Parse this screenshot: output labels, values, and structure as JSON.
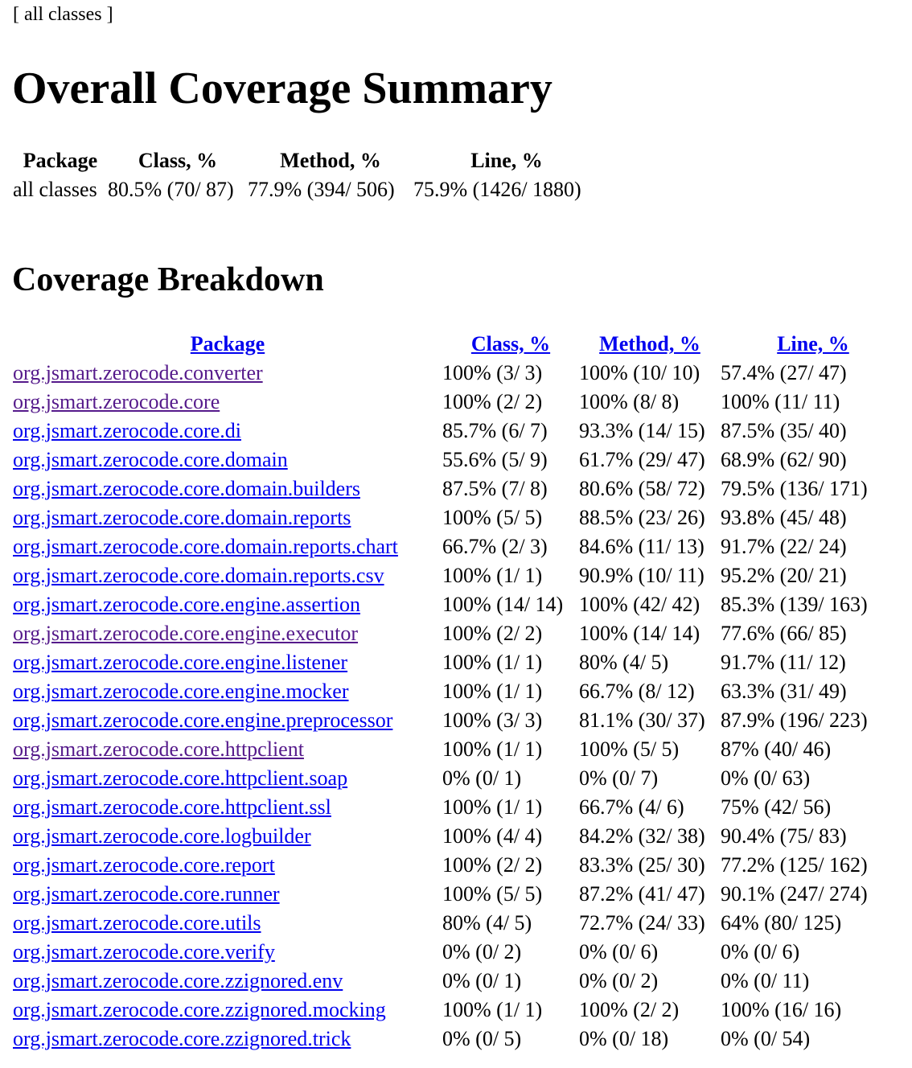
{
  "nav": {
    "label": "[ all classes ]"
  },
  "title": "Overall Coverage Summary",
  "summary": {
    "headers": [
      "Package",
      "Class, %",
      "Method, %",
      "Line, %"
    ],
    "row": [
      "all classes",
      "80.5% (70/ 87)",
      "77.9% (394/ 506)",
      "75.9% (1426/ 1880)"
    ]
  },
  "breakdown_title": "Coverage Breakdown",
  "breakdown": {
    "headers": [
      "Package",
      "Class, %",
      "Method, %",
      "Line, %"
    ],
    "rows": [
      {
        "name": "org.jsmart.zerocode.converter",
        "visited": true,
        "cls": "100% (3/ 3)",
        "method": "100% (10/ 10)",
        "line": "57.4% (27/ 47)"
      },
      {
        "name": "org.jsmart.zerocode.core",
        "visited": true,
        "cls": "100% (2/ 2)",
        "method": "100% (8/ 8)",
        "line": "100% (11/ 11)"
      },
      {
        "name": "org.jsmart.zerocode.core.di",
        "visited": false,
        "cls": "85.7% (6/ 7)",
        "method": "93.3% (14/ 15)",
        "line": "87.5% (35/ 40)"
      },
      {
        "name": "org.jsmart.zerocode.core.domain",
        "visited": false,
        "cls": "55.6% (5/ 9)",
        "method": "61.7% (29/ 47)",
        "line": "68.9% (62/ 90)"
      },
      {
        "name": "org.jsmart.zerocode.core.domain.builders",
        "visited": false,
        "cls": "87.5% (7/ 8)",
        "method": "80.6% (58/ 72)",
        "line": "79.5% (136/ 171)"
      },
      {
        "name": "org.jsmart.zerocode.core.domain.reports",
        "visited": false,
        "cls": "100% (5/ 5)",
        "method": "88.5% (23/ 26)",
        "line": "93.8% (45/ 48)"
      },
      {
        "name": "org.jsmart.zerocode.core.domain.reports.chart",
        "visited": false,
        "cls": "66.7% (2/ 3)",
        "method": "84.6% (11/ 13)",
        "line": "91.7% (22/ 24)"
      },
      {
        "name": "org.jsmart.zerocode.core.domain.reports.csv",
        "visited": false,
        "cls": "100% (1/ 1)",
        "method": "90.9% (10/ 11)",
        "line": "95.2% (20/ 21)"
      },
      {
        "name": "org.jsmart.zerocode.core.engine.assertion",
        "visited": false,
        "cls": "100% (14/ 14)",
        "method": "100% (42/ 42)",
        "line": "85.3% (139/ 163)"
      },
      {
        "name": "org.jsmart.zerocode.core.engine.executor",
        "visited": true,
        "cls": "100% (2/ 2)",
        "method": "100% (14/ 14)",
        "line": "77.6% (66/ 85)"
      },
      {
        "name": "org.jsmart.zerocode.core.engine.listener",
        "visited": false,
        "cls": "100% (1/ 1)",
        "method": "80% (4/ 5)",
        "line": "91.7% (11/ 12)"
      },
      {
        "name": "org.jsmart.zerocode.core.engine.mocker",
        "visited": false,
        "cls": "100% (1/ 1)",
        "method": "66.7% (8/ 12)",
        "line": "63.3% (31/ 49)"
      },
      {
        "name": "org.jsmart.zerocode.core.engine.preprocessor",
        "visited": false,
        "cls": "100% (3/ 3)",
        "method": "81.1% (30/ 37)",
        "line": "87.9% (196/ 223)"
      },
      {
        "name": "org.jsmart.zerocode.core.httpclient",
        "visited": true,
        "cls": "100% (1/ 1)",
        "method": "100% (5/ 5)",
        "line": "87% (40/ 46)"
      },
      {
        "name": "org.jsmart.zerocode.core.httpclient.soap",
        "visited": false,
        "cls": "0% (0/ 1)",
        "method": "0% (0/ 7)",
        "line": "0% (0/ 63)"
      },
      {
        "name": "org.jsmart.zerocode.core.httpclient.ssl",
        "visited": false,
        "cls": "100% (1/ 1)",
        "method": "66.7% (4/ 6)",
        "line": "75% (42/ 56)"
      },
      {
        "name": "org.jsmart.zerocode.core.logbuilder",
        "visited": false,
        "cls": "100% (4/ 4)",
        "method": "84.2% (32/ 38)",
        "line": "90.4% (75/ 83)"
      },
      {
        "name": "org.jsmart.zerocode.core.report",
        "visited": false,
        "cls": "100% (2/ 2)",
        "method": "83.3% (25/ 30)",
        "line": "77.2% (125/ 162)"
      },
      {
        "name": "org.jsmart.zerocode.core.runner",
        "visited": false,
        "cls": "100% (5/ 5)",
        "method": "87.2% (41/ 47)",
        "line": "90.1% (247/ 274)"
      },
      {
        "name": "org.jsmart.zerocode.core.utils",
        "visited": false,
        "cls": "80% (4/ 5)",
        "method": "72.7% (24/ 33)",
        "line": "64% (80/ 125)"
      },
      {
        "name": "org.jsmart.zerocode.core.verify",
        "visited": false,
        "cls": "0% (0/ 2)",
        "method": "0% (0/ 6)",
        "line": "0% (0/ 6)"
      },
      {
        "name": "org.jsmart.zerocode.core.zzignored.env",
        "visited": false,
        "cls": "0% (0/ 1)",
        "method": "0% (0/ 2)",
        "line": "0% (0/ 11)"
      },
      {
        "name": "org.jsmart.zerocode.core.zzignored.mocking",
        "visited": false,
        "cls": "100% (1/ 1)",
        "method": "100% (2/ 2)",
        "line": "100% (16/ 16)"
      },
      {
        "name": "org.jsmart.zerocode.core.zzignored.trick",
        "visited": false,
        "cls": "0% (0/ 5)",
        "method": "0% (0/ 18)",
        "line": "0% (0/ 54)"
      }
    ]
  },
  "colors": {
    "link": "#0000ee",
    "visited": "#551a8b",
    "text": "#000000",
    "background": "#ffffff"
  }
}
